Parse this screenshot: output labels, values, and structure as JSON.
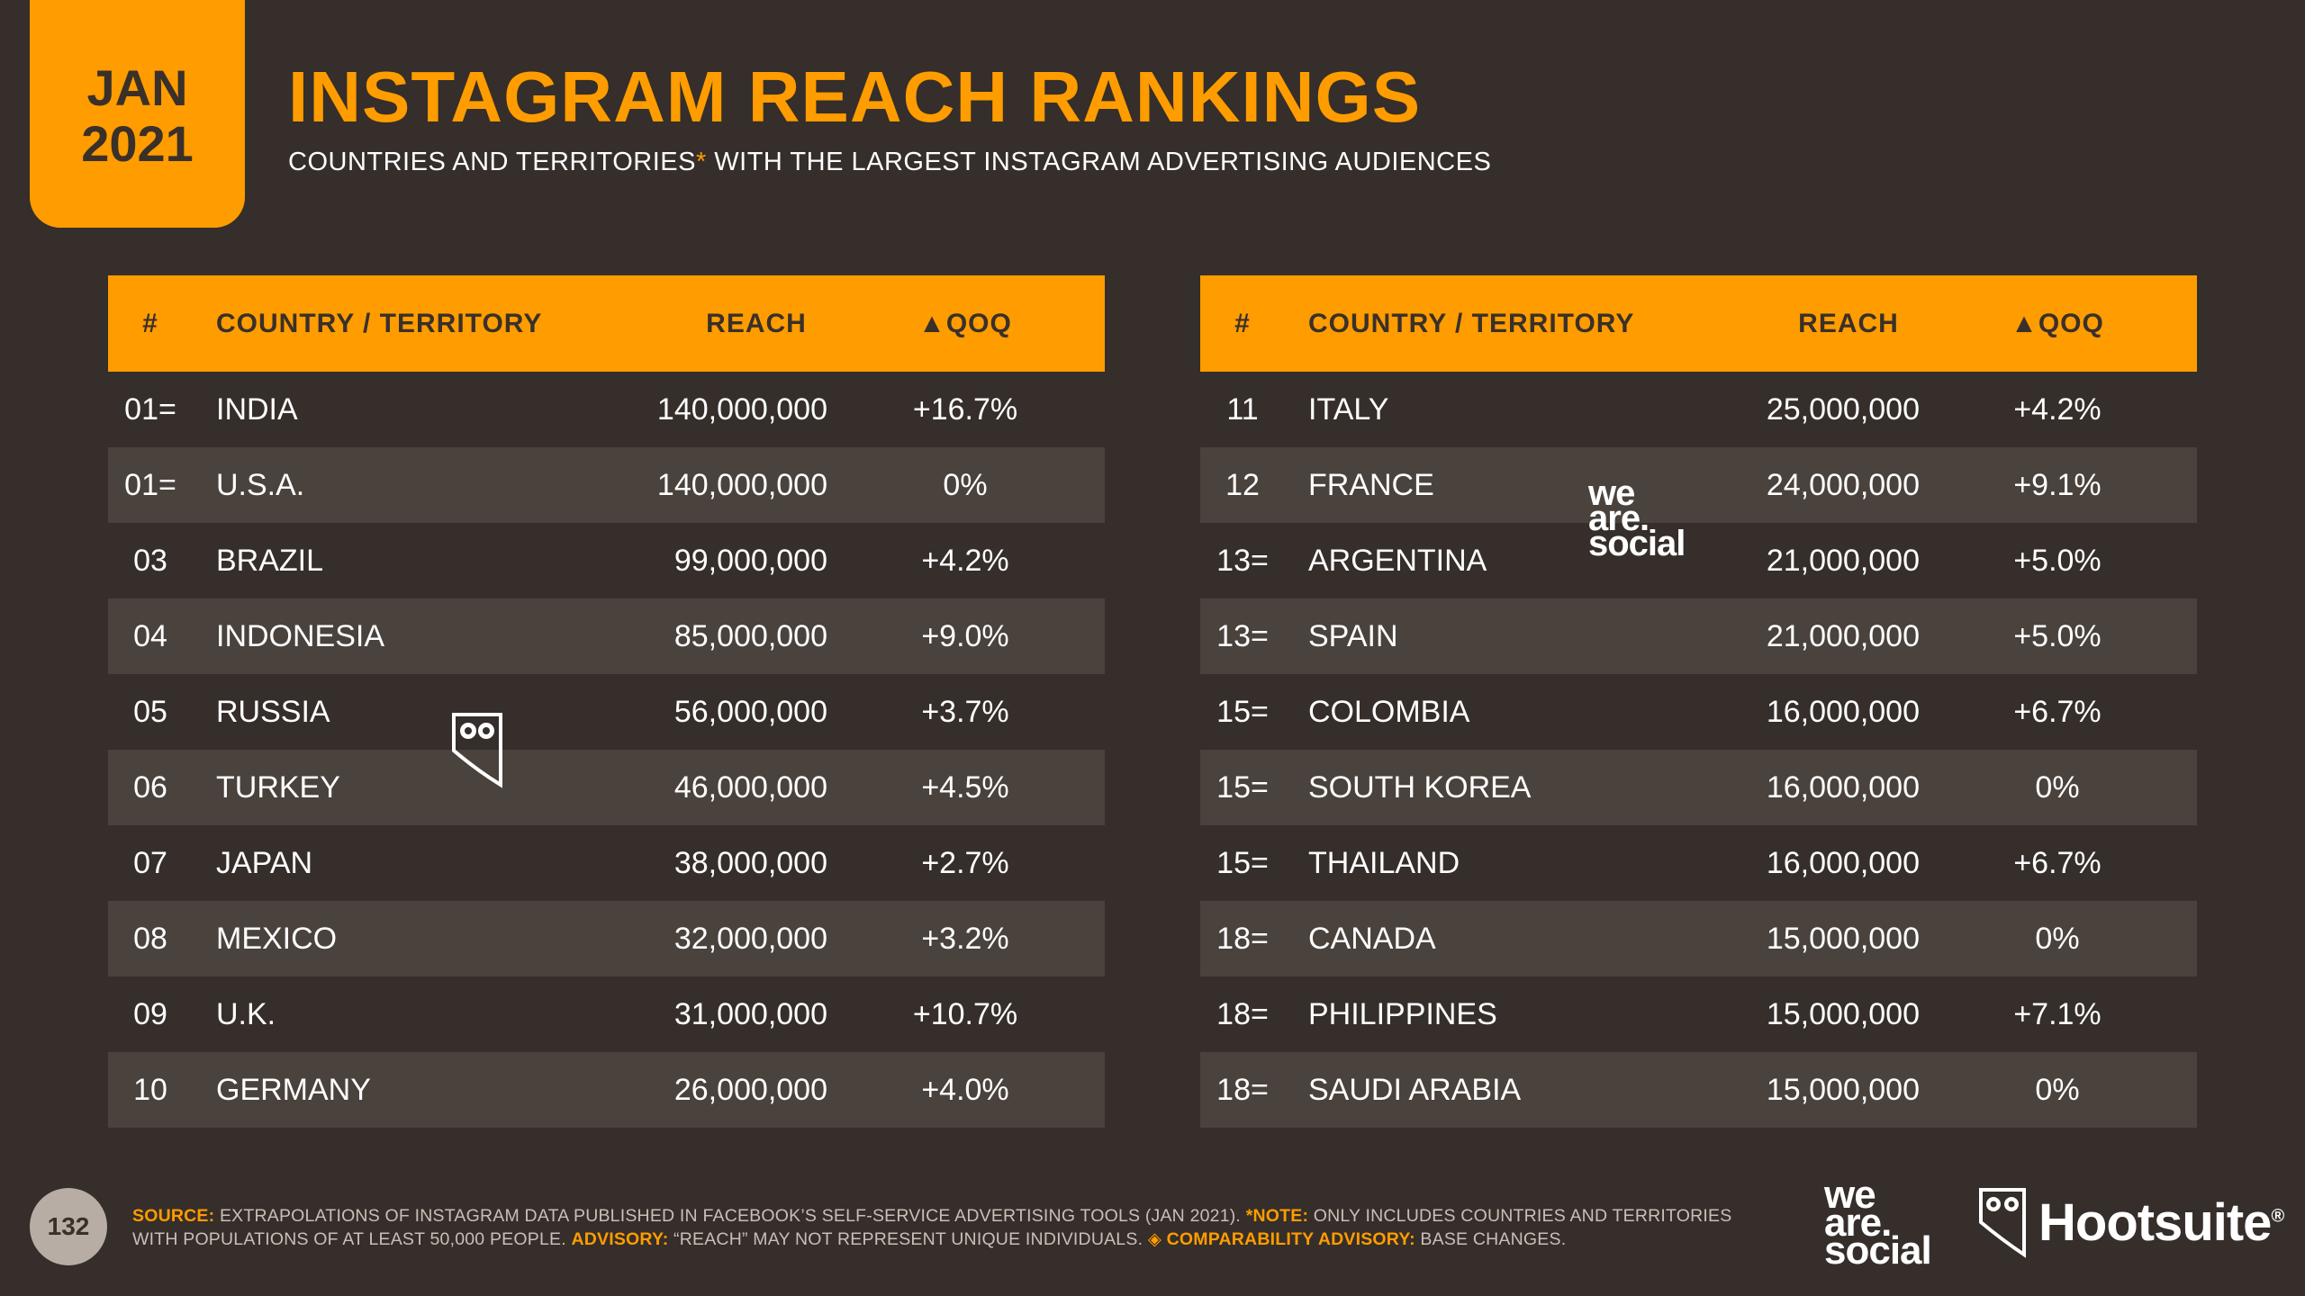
{
  "badge": {
    "month": "JAN",
    "year": "2021"
  },
  "title": "INSTAGRAM REACH RANKINGS",
  "subtitle": {
    "part1": "COUNTRIES AND TERRITORIES",
    "asterisk": "*",
    "part2": " WITH THE LARGEST INSTAGRAM ADVERTISING AUDIENCES"
  },
  "table_headers": {
    "rank": "#",
    "country": "COUNTRY / TERRITORY",
    "reach": "REACH",
    "qoq": "▲QOQ"
  },
  "left_rows": [
    {
      "rank": "01=",
      "country": "INDIA",
      "reach": "140,000,000",
      "qoq": "+16.7%"
    },
    {
      "rank": "01=",
      "country": "U.S.A.",
      "reach": "140,000,000",
      "qoq": "0%"
    },
    {
      "rank": "03",
      "country": "BRAZIL",
      "reach": "99,000,000",
      "qoq": "+4.2%"
    },
    {
      "rank": "04",
      "country": "INDONESIA",
      "reach": "85,000,000",
      "qoq": "+9.0%"
    },
    {
      "rank": "05",
      "country": "RUSSIA",
      "reach": "56,000,000",
      "qoq": "+3.7%"
    },
    {
      "rank": "06",
      "country": "TURKEY",
      "reach": "46,000,000",
      "qoq": "+4.5%"
    },
    {
      "rank": "07",
      "country": "JAPAN",
      "reach": "38,000,000",
      "qoq": "+2.7%"
    },
    {
      "rank": "08",
      "country": "MEXICO",
      "reach": "32,000,000",
      "qoq": "+3.2%"
    },
    {
      "rank": "09",
      "country": "U.K.",
      "reach": "31,000,000",
      "qoq": "+10.7%"
    },
    {
      "rank": "10",
      "country": "GERMANY",
      "reach": "26,000,000",
      "qoq": "+4.0%"
    }
  ],
  "right_rows": [
    {
      "rank": "11",
      "country": "ITALY",
      "reach": "25,000,000",
      "qoq": "+4.2%"
    },
    {
      "rank": "12",
      "country": "FRANCE",
      "reach": "24,000,000",
      "qoq": "+9.1%"
    },
    {
      "rank": "13=",
      "country": "ARGENTINA",
      "reach": "21,000,000",
      "qoq": "+5.0%"
    },
    {
      "rank": "13=",
      "country": "SPAIN",
      "reach": "21,000,000",
      "qoq": "+5.0%"
    },
    {
      "rank": "15=",
      "country": "COLOMBIA",
      "reach": "16,000,000",
      "qoq": "+6.7%"
    },
    {
      "rank": "15=",
      "country": "SOUTH KOREA",
      "reach": "16,000,000",
      "qoq": "0%"
    },
    {
      "rank": "15=",
      "country": "THAILAND",
      "reach": "16,000,000",
      "qoq": "+6.7%"
    },
    {
      "rank": "18=",
      "country": "CANADA",
      "reach": "15,000,000",
      "qoq": "0%"
    },
    {
      "rank": "18=",
      "country": "PHILIPPINES",
      "reach": "15,000,000",
      "qoq": "+7.1%"
    },
    {
      "rank": "18=",
      "country": "SAUDI ARABIA",
      "reach": "15,000,000",
      "qoq": "0%"
    }
  ],
  "watermark_wearesocial": [
    "we",
    "are.",
    "social"
  ],
  "footer": {
    "page_number": "132",
    "source_label": "SOURCE:",
    "source_text": " EXTRAPOLATIONS OF INSTAGRAM DATA PUBLISHED IN FACEBOOK’S SELF-SERVICE ADVERTISING TOOLS (JAN 2021). ",
    "note_label": "*NOTE:",
    "note_text": " ONLY INCLUDES COUNTRIES AND TERRITORIES WITH POPULATIONS OF AT LEAST 50,000 PEOPLE. ",
    "advisory_label": "ADVISORY:",
    "advisory_text": " “REACH” MAY NOT REPRESENT UNIQUE INDIVIDUALS. ",
    "comparability_label": "◈ COMPARABILITY ADVISORY:",
    "comparability_text": " BASE CHANGES."
  },
  "brands": {
    "wearesocial": [
      "we",
      "are.",
      "social"
    ],
    "hootsuite": "Hootsuite",
    "hootsuite_mark": "®"
  },
  "colors": {
    "background": "#352e2a",
    "accent": "#ff9c00",
    "row_shade": "#4a423c",
    "text": "#ffffff"
  }
}
